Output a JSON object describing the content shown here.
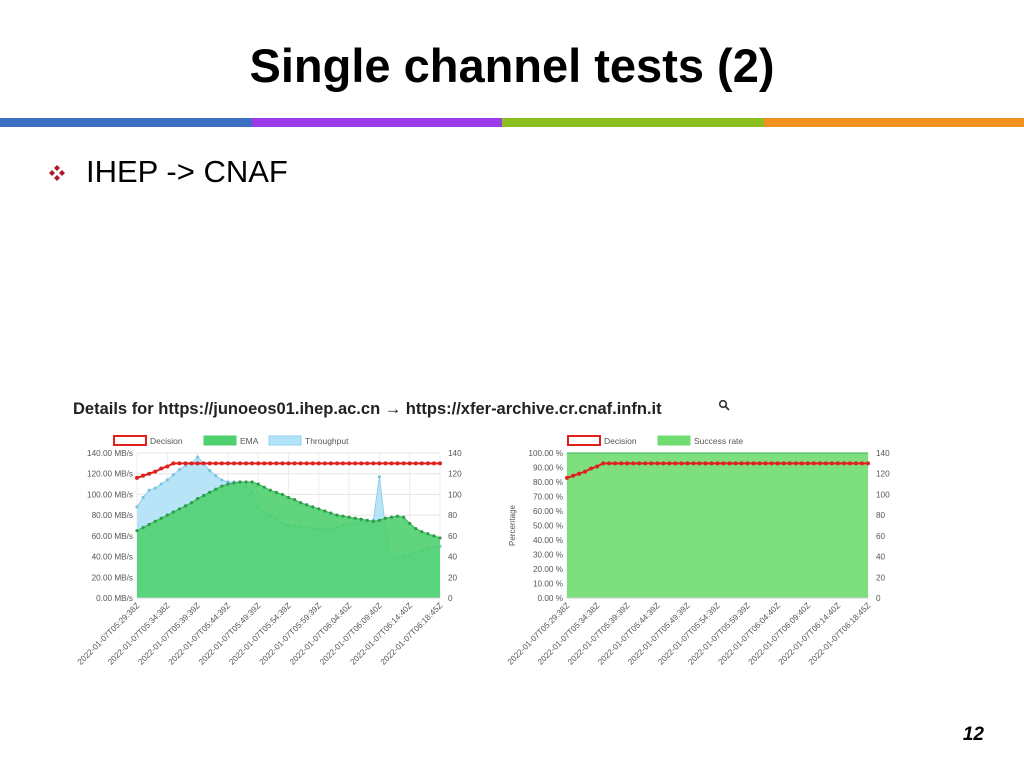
{
  "slide": {
    "title": "Single channel tests (2)",
    "bullet": "IHEP -> CNAF",
    "details": "Details for https://junoeos01.ihep.ac.cn → https://xfer-archive.cr.cnaf.infn.it",
    "page_number": "12",
    "bullet_icon": "diamond-bullet-icon",
    "search_icon": "magnifier-icon",
    "rule_colors": [
      "#3a6fc4",
      "#9b3be8",
      "#8cc021",
      "#f0931e"
    ],
    "colors": {
      "decision": "#e0201c",
      "ema_fill": "#4fd06f",
      "throughput_fill": "#b3e3f7",
      "success_fill": "#6fdc6f"
    }
  },
  "chart_data": [
    {
      "type": "area",
      "title": "",
      "legend_position": "top",
      "legend": [
        "Decision",
        "EMA",
        "Throughput"
      ],
      "ylabel": "",
      "ylim": [
        0,
        140
      ],
      "yticks": [
        "0.00 MB/s",
        "20.00 MB/s",
        "40.00 MB/s",
        "60.00 MB/s",
        "80.00 MB/s",
        "100.00 MB/s",
        "120.00 MB/s",
        "140.00 MB/s"
      ],
      "y2lim": [
        0,
        140
      ],
      "y2ticks": [
        "0",
        "20",
        "40",
        "60",
        "80",
        "100",
        "120",
        "140"
      ],
      "xticks": [
        "2022-01-07T05:29:38Z",
        "2022-01-07T05:34:38Z",
        "2022-01-07T05:39:39Z",
        "2022-01-07T05:44:39Z",
        "2022-01-07T05:49:39Z",
        "2022-01-07T05:54:39Z",
        "2022-01-07T05:59:39Z",
        "2022-01-07T06:04:40Z",
        "2022-01-07T06:09:40Z",
        "2022-01-07T06:14:40Z",
        "2022-01-07T06:18:45Z"
      ],
      "x": [
        0,
        1,
        2,
        3,
        4,
        5,
        6,
        7,
        8,
        9,
        10,
        11,
        12,
        13,
        14,
        15,
        16,
        17,
        18,
        19,
        20,
        21,
        22,
        23,
        24,
        25,
        26,
        27,
        28,
        29,
        30,
        31,
        32,
        33,
        34,
        35,
        36,
        37,
        38,
        39,
        40,
        41,
        42,
        43,
        44,
        45,
        46,
        47,
        48,
        49,
        50
      ],
      "series": [
        {
          "name": "Decision",
          "values": [
            116,
            118,
            120,
            122,
            125,
            127,
            130,
            130,
            130,
            130,
            130,
            130,
            130,
            130,
            130,
            130,
            130,
            130,
            130,
            130,
            130,
            130,
            130,
            130,
            130,
            130,
            130,
            130,
            130,
            130,
            130,
            130,
            130,
            130,
            130,
            130,
            130,
            130,
            130,
            130,
            130,
            130,
            130,
            130,
            130,
            130,
            130,
            130,
            130,
            130,
            130
          ]
        },
        {
          "name": "EMA",
          "values": [
            65,
            68,
            71,
            74,
            77,
            80,
            83,
            86,
            89,
            92,
            96,
            99,
            102,
            105,
            108,
            110,
            111,
            112,
            112,
            112,
            110,
            107,
            104,
            102,
            100,
            97,
            95,
            92,
            90,
            88,
            86,
            84,
            82,
            80,
            79,
            78,
            77,
            76,
            75,
            74,
            75,
            77,
            78,
            79,
            78,
            72,
            67,
            64,
            62,
            60,
            58
          ]
        },
        {
          "name": "Throughput",
          "values": [
            88,
            97,
            104,
            106,
            110,
            114,
            119,
            124,
            128,
            130,
            136,
            130,
            123,
            118,
            114,
            112,
            112,
            112,
            108,
            102,
            88,
            82,
            80,
            76,
            72,
            70,
            70,
            69,
            68,
            67,
            67,
            66,
            67,
            68,
            70,
            72,
            72,
            73,
            74,
            75,
            117,
            68,
            37,
            39,
            41,
            42,
            44,
            46,
            48,
            49,
            50
          ]
        }
      ]
    },
    {
      "type": "area",
      "title": "",
      "legend_position": "top",
      "legend": [
        "Decision",
        "Success rate"
      ],
      "ylabel": "Percentage",
      "ylim": [
        0,
        100
      ],
      "yticks": [
        "0.00 %",
        "10.00 %",
        "20.00 %",
        "30.00 %",
        "40.00 %",
        "50.00 %",
        "60.00 %",
        "70.00 %",
        "80.00 %",
        "90.00 %",
        "100.00 %"
      ],
      "y2lim": [
        0,
        140
      ],
      "y2ticks": [
        "0",
        "20",
        "40",
        "60",
        "80",
        "100",
        "120",
        "140"
      ],
      "xticks": [
        "2022-01-07T05:29:38Z",
        "2022-01-07T05:34:38Z",
        "2022-01-07T05:39:39Z",
        "2022-01-07T05:44:39Z",
        "2022-01-07T05:49:39Z",
        "2022-01-07T05:54:39Z",
        "2022-01-07T05:59:39Z",
        "2022-01-07T06:04:40Z",
        "2022-01-07T06:09:40Z",
        "2022-01-07T06:14:40Z",
        "2022-01-07T06:18:45Z"
      ],
      "x": [
        0,
        1,
        2,
        3,
        4,
        5,
        6,
        7,
        8,
        9,
        10,
        11,
        12,
        13,
        14,
        15,
        16,
        17,
        18,
        19,
        20,
        21,
        22,
        23,
        24,
        25,
        26,
        27,
        28,
        29,
        30,
        31,
        32,
        33,
        34,
        35,
        36,
        37,
        38,
        39,
        40,
        41,
        42,
        43,
        44,
        45,
        46,
        47,
        48,
        49,
        50
      ],
      "series": [
        {
          "name": "Decision",
          "axis": "right",
          "values": [
            116,
            118,
            120,
            122,
            125,
            127,
            130,
            130,
            130,
            130,
            130,
            130,
            130,
            130,
            130,
            130,
            130,
            130,
            130,
            130,
            130,
            130,
            130,
            130,
            130,
            130,
            130,
            130,
            130,
            130,
            130,
            130,
            130,
            130,
            130,
            130,
            130,
            130,
            130,
            130,
            130,
            130,
            130,
            130,
            130,
            130,
            130,
            130,
            130,
            130,
            130
          ]
        },
        {
          "name": "Success rate",
          "axis": "left",
          "values": [
            100,
            100,
            100,
            100,
            100,
            100,
            100,
            100,
            100,
            100,
            100,
            100,
            100,
            100,
            100,
            100,
            100,
            100,
            100,
            100,
            100,
            100,
            100,
            100,
            100,
            100,
            100,
            100,
            100,
            100,
            100,
            100,
            100,
            100,
            100,
            100,
            100,
            100,
            100,
            100,
            100,
            100,
            100,
            100,
            100,
            100,
            100,
            100,
            100,
            100,
            100
          ]
        }
      ]
    }
  ]
}
